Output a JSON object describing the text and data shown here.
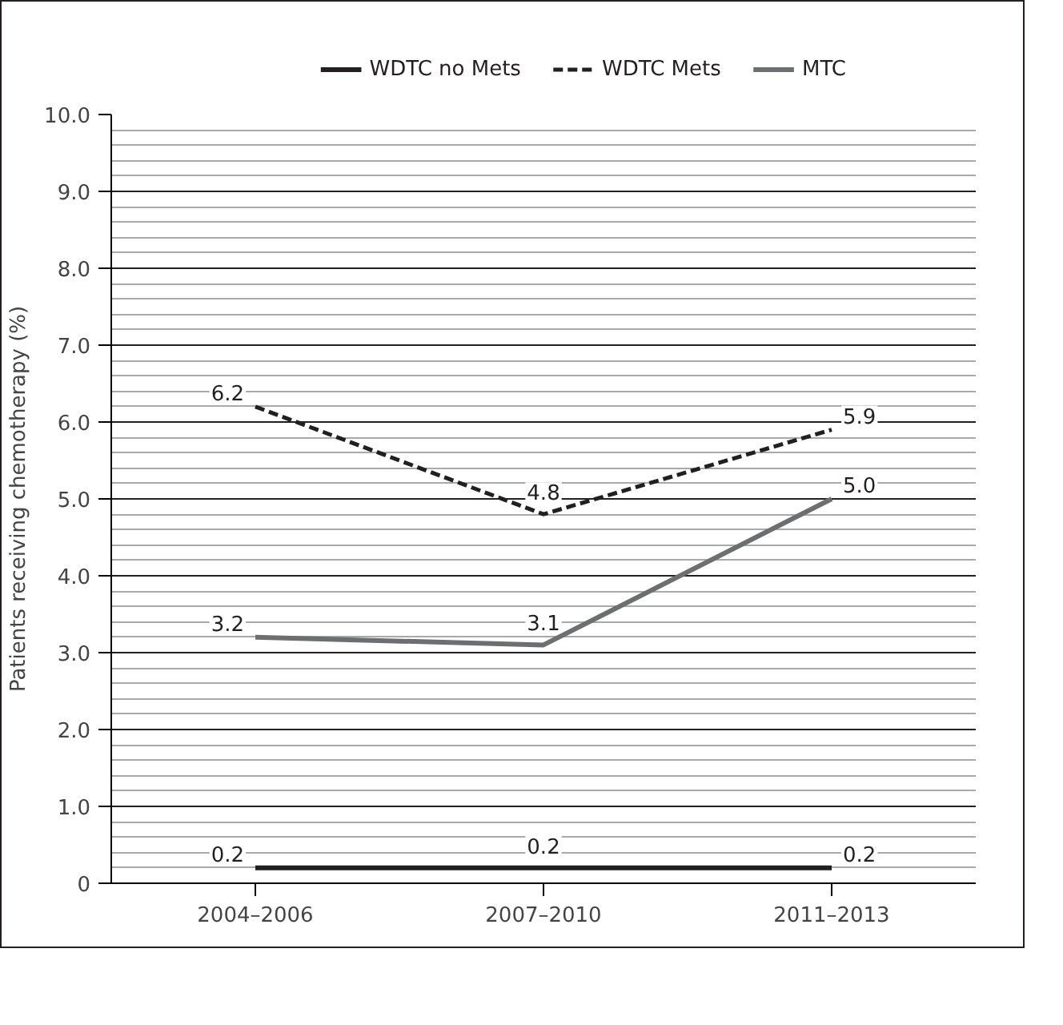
{
  "chart_data": {
    "type": "line",
    "ylabel": "Patients receiving chemotherapy (%)",
    "categories": [
      "2004–2006",
      "2007–2010",
      "2011–2013"
    ],
    "series": [
      {
        "name": "WDTC no Mets",
        "color": "#231f20",
        "values": [
          0.2,
          0.2,
          0.2
        ],
        "value_labels": [
          "0.2",
          "0.2",
          "0.2"
        ]
      },
      {
        "name": "WDTC Mets",
        "color": "#231f20",
        "values": [
          6.2,
          4.8,
          5.9
        ],
        "value_labels": [
          "6.2",
          "4.8",
          "5.9"
        ],
        "line_style": "dashed"
      },
      {
        "name": "MTC",
        "color": "#6d6e71",
        "values": [
          3.2,
          3.1,
          5.0
        ],
        "value_labels": [
          "3.2",
          "3.1",
          "5.0"
        ]
      }
    ],
    "ylim": [
      0,
      10
    ],
    "yticks": [
      0,
      {
        "value": 1,
        "label": "1.0"
      },
      {
        "value": 2,
        "label": "2.0"
      },
      {
        "value": 3,
        "label": "3.0"
      },
      {
        "value": 4,
        "label": "4.0"
      },
      {
        "value": 5,
        "label": "5.0"
      },
      {
        "value": 6,
        "label": "6.0"
      },
      {
        "value": 7,
        "label": "7.0"
      },
      {
        "value": 8,
        "label": "8.0"
      },
      {
        "value": 9,
        "label": "9.0"
      },
      {
        "value": 10,
        "label": "10.0"
      }
    ],
    "grid": "y",
    "legend": "top",
    "data_labels": true,
    "marker": "none",
    "line_style": "solid"
  }
}
